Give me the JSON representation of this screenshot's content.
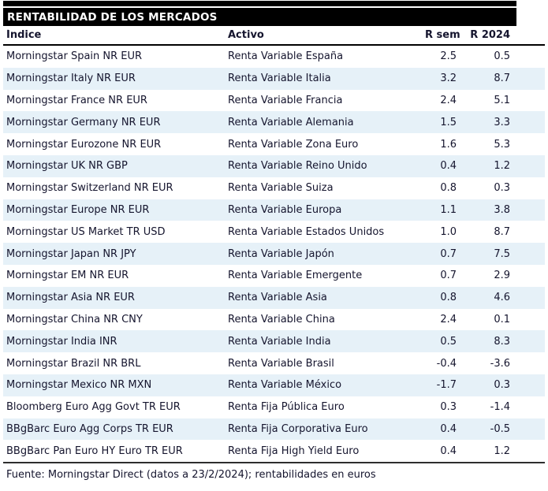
{
  "colors": {
    "header_bg": "#000000",
    "header_text": "#ffffff",
    "stripe": "#e6f1f8",
    "text": "#15152e",
    "rule": "#000000"
  },
  "chart_data": {
    "type": "table",
    "title": "RENTABILIDAD DE LOS MERCADOS",
    "columns": [
      "Índice",
      "Activo",
      "R sem",
      "R 2024"
    ],
    "rows": [
      [
        "Morningstar Spain NR EUR",
        "Renta Variable España",
        "2.5",
        "0.5"
      ],
      [
        "Morningstar Italy NR EUR",
        "Renta Variable Italia",
        "3.2",
        "8.7"
      ],
      [
        "Morningstar France NR EUR",
        "Renta Variable Francia",
        "2.4",
        "5.1"
      ],
      [
        "Morningstar Germany NR EUR",
        "Renta Variable Alemania",
        "1.5",
        "3.3"
      ],
      [
        "Morningstar Eurozone NR EUR",
        "Renta Variable Zona Euro",
        "1.6",
        "5.3"
      ],
      [
        "Morningstar UK NR GBP",
        "Renta Variable Reino Unido",
        "0.4",
        "1.2"
      ],
      [
        "Morningstar Switzerland NR EUR",
        "Renta Variable Suiza",
        "0.8",
        "0.3"
      ],
      [
        "Morningstar Europe NR EUR",
        "Renta Variable Europa",
        "1.1",
        "3.8"
      ],
      [
        "Morningstar US Market TR USD",
        "Renta Variable Estados Unidos",
        "1.0",
        "8.7"
      ],
      [
        "Morningstar Japan NR JPY",
        "Renta Variable Japón",
        "0.7",
        "7.5"
      ],
      [
        "Morningstar EM NR EUR",
        "Renta Variable Emergente",
        "0.7",
        "2.9"
      ],
      [
        "Morningstar Asia NR EUR",
        "Renta Variable Asia",
        "0.8",
        "4.6"
      ],
      [
        "Morningstar China NR CNY",
        "Renta Variable China",
        "2.4",
        "0.1"
      ],
      [
        "Morningstar India INR",
        "Renta Variable India",
        "0.5",
        "8.3"
      ],
      [
        "Morningstar Brazil NR BRL",
        "Renta Variable Brasil",
        "-0.4",
        "-3.6"
      ],
      [
        "Morningstar Mexico NR MXN",
        "Renta Variable México",
        "-1.7",
        "0.3"
      ],
      [
        "Bloomberg Euro Agg Govt TR EUR",
        "Renta Fija Pública Euro",
        "0.3",
        "-1.4"
      ],
      [
        "BBgBarc Euro Agg Corps TR EUR",
        "Renta Fija Corporativa Euro",
        "0.4",
        "-0.5"
      ],
      [
        "BBgBarc Pan Euro HY Euro TR EUR",
        "Renta Fija High Yield Euro",
        "0.4",
        "1.2"
      ]
    ],
    "footnote": "Fuente: Morningstar Direct (datos a 23/2/2024); rentabilidades en euros",
    "layout": {
      "striped": true,
      "stripe_pattern": "even_rows_pale_blue",
      "numeric_columns_right_aligned": true,
      "grid": "none"
    }
  }
}
